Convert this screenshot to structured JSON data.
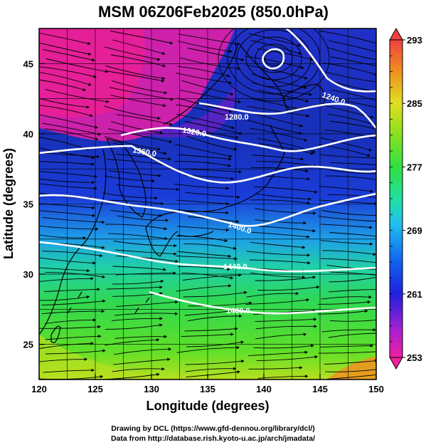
{
  "title": "MSM 06Z06Feb2025 (850.0hPa)",
  "x_axis": {
    "label": "Longitude (degrees)",
    "range": [
      120,
      150
    ],
    "ticks": [
      "120",
      "125",
      "130",
      "135",
      "140",
      "145",
      "150"
    ]
  },
  "y_axis": {
    "label": "Latitude (degrees)",
    "range": [
      22.5,
      47.5
    ],
    "ticks": [
      "25",
      "30",
      "35",
      "40",
      "45"
    ]
  },
  "colorbar": {
    "range": [
      253,
      293
    ],
    "ticks": [
      "293",
      "285",
      "277",
      "269",
      "261",
      "253"
    ],
    "colors": [
      "#f0208a",
      "#b020d0",
      "#4020e0",
      "#1040e0",
      "#20c0e0",
      "#20e060",
      "#9ae01c",
      "#e0e020",
      "#f08020",
      "#f04040"
    ]
  },
  "contours": [
    {
      "label": "1240.0"
    },
    {
      "label": "1280.0"
    },
    {
      "label": "1320.0"
    },
    {
      "label": "1360.0"
    },
    {
      "label": "1400.0"
    },
    {
      "label": "1440.0"
    },
    {
      "label": "1480.0"
    }
  ],
  "credits": {
    "line1": "Drawing by DCL (https://www.gfd-dennou.org/library/dcl/)",
    "line2": "Data from http://database.rish.kyoto-u.ac.jp/arch/jmadata/"
  }
}
